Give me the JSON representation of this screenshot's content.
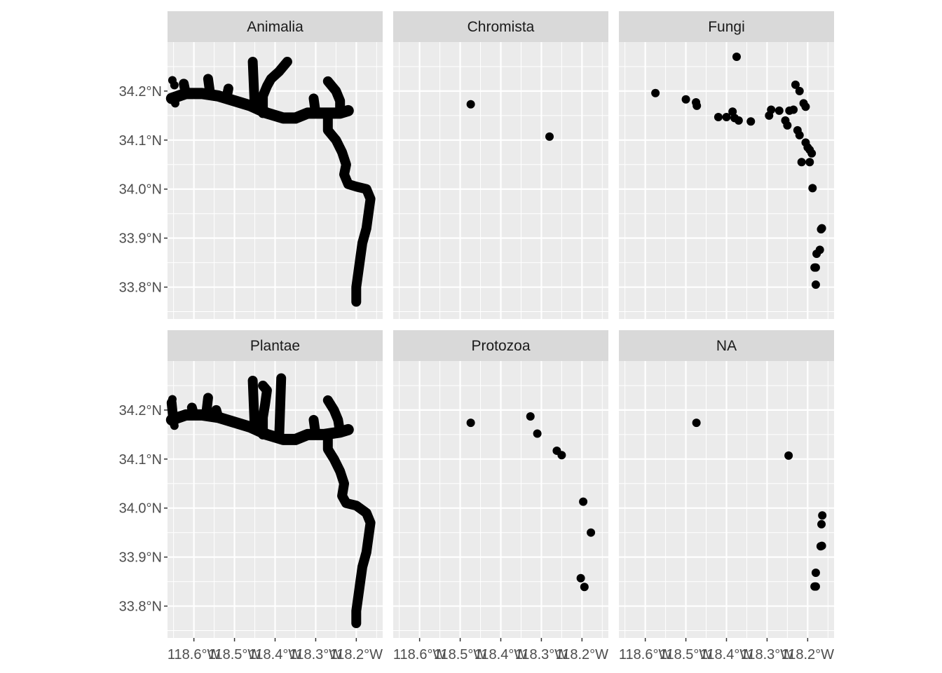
{
  "chart_data": {
    "type": "scatter",
    "layout": "facet_wrap",
    "colors": {
      "panel_bg": "#ebebeb",
      "grid": "#ffffff",
      "strip_bg": "#d9d9d9",
      "point": "#000000",
      "tick_text": "#4d4d4d",
      "strip_text": "#1a1a1a"
    },
    "xlim": [
      -118.665,
      -118.135
    ],
    "ylim": [
      33.735,
      34.3
    ],
    "x_ticks": [
      -118.6,
      -118.5,
      -118.4,
      -118.3,
      -118.2
    ],
    "x_tick_labels": [
      "118.6°W",
      "118.5°W",
      "118.4°W",
      "118.3°W",
      "118.2°W"
    ],
    "y_ticks": [
      33.8,
      33.9,
      34.0,
      34.1,
      34.2
    ],
    "y_tick_labels": [
      "33.8°N",
      "33.9°N",
      "34.0°N",
      "34.1°N",
      "34.2°N"
    ],
    "panels": [
      {
        "label": "Animalia",
        "dense_path": [
          [
            -118.655,
            34.185
          ],
          [
            -118.62,
            34.195
          ],
          [
            -118.58,
            34.195
          ],
          [
            -118.54,
            34.19
          ],
          [
            -118.5,
            34.18
          ],
          [
            -118.46,
            34.17
          ],
          [
            -118.42,
            34.155
          ],
          [
            -118.38,
            34.145
          ],
          [
            -118.35,
            34.145
          ],
          [
            -118.32,
            34.155
          ],
          [
            -118.28,
            34.155
          ],
          [
            -118.24,
            34.155
          ],
          [
            -118.22,
            34.16
          ]
        ],
        "branches": [
          [
            [
              -118.62,
              34.195
            ],
            [
              -118.625,
              34.215
            ]
          ],
          [
            [
              -118.56,
              34.195
            ],
            [
              -118.565,
              34.225
            ]
          ],
          [
            [
              -118.52,
              34.185
            ],
            [
              -118.515,
              34.205
            ]
          ],
          [
            [
              -118.43,
              34.155
            ],
            [
              -118.43,
              34.19
            ],
            [
              -118.42,
              34.21
            ],
            [
              -118.41,
              34.225
            ],
            [
              -118.39,
              34.24
            ],
            [
              -118.37,
              34.26
            ]
          ],
          [
            [
              -118.45,
              34.165
            ],
            [
              -118.455,
              34.26
            ]
          ],
          [
            [
              -118.3,
              34.155
            ],
            [
              -118.305,
              34.185
            ]
          ],
          [
            [
              -118.24,
              34.16
            ],
            [
              -118.24,
              34.18
            ],
            [
              -118.25,
              34.2
            ],
            [
              -118.27,
              34.22
            ]
          ],
          [
            [
              -118.27,
              34.155
            ],
            [
              -118.27,
              34.12
            ],
            [
              -118.25,
              34.1
            ],
            [
              -118.235,
              34.075
            ],
            [
              -118.225,
              34.05
            ],
            [
              -118.23,
              34.03
            ],
            [
              -118.22,
              34.01
            ],
            [
              -118.2,
              34.005
            ],
            [
              -118.175,
              34.0
            ],
            [
              -118.165,
              33.98
            ],
            [
              -118.17,
              33.95
            ],
            [
              -118.175,
              33.92
            ],
            [
              -118.185,
              33.89
            ],
            [
              -118.19,
              33.86
            ],
            [
              -118.195,
              33.83
            ],
            [
              -118.2,
              33.8
            ],
            [
              -118.2,
              33.77
            ]
          ]
        ],
        "points": [
          [
            -118.653,
            34.222
          ],
          [
            -118.648,
            34.212
          ],
          [
            -118.646,
            34.175
          ]
        ]
      },
      {
        "label": "Chromista",
        "dense_path": [],
        "branches": [],
        "points": [
          [
            -118.474,
            34.173
          ],
          [
            -118.28,
            34.107
          ]
        ]
      },
      {
        "label": "Fungi",
        "dense_path": [],
        "branches": [],
        "points": [
          [
            -118.375,
            34.27
          ],
          [
            -118.575,
            34.196
          ],
          [
            -118.5,
            34.183
          ],
          [
            -118.475,
            34.177
          ],
          [
            -118.473,
            34.17
          ],
          [
            -118.42,
            34.147
          ],
          [
            -118.4,
            34.147
          ],
          [
            -118.385,
            34.158
          ],
          [
            -118.38,
            34.145
          ],
          [
            -118.37,
            34.14
          ],
          [
            -118.34,
            34.138
          ],
          [
            -118.29,
            34.162
          ],
          [
            -118.295,
            34.15
          ],
          [
            -118.27,
            34.16
          ],
          [
            -118.255,
            34.14
          ],
          [
            -118.25,
            34.13
          ],
          [
            -118.245,
            34.16
          ],
          [
            -118.235,
            34.162
          ],
          [
            -118.225,
            34.12
          ],
          [
            -118.22,
            34.11
          ],
          [
            -118.23,
            34.213
          ],
          [
            -118.22,
            34.2
          ],
          [
            -118.21,
            34.175
          ],
          [
            -118.205,
            34.168
          ],
          [
            -118.205,
            34.095
          ],
          [
            -118.2,
            34.085
          ],
          [
            -118.195,
            34.08
          ],
          [
            -118.19,
            34.073
          ],
          [
            -118.195,
            34.055
          ],
          [
            -118.215,
            34.055
          ],
          [
            -118.188,
            34.002
          ],
          [
            -118.165,
            33.92
          ],
          [
            -118.167,
            33.918
          ],
          [
            -118.17,
            33.876
          ],
          [
            -118.178,
            33.868
          ],
          [
            -118.18,
            33.84
          ],
          [
            -118.183,
            33.84
          ],
          [
            -118.18,
            33.805
          ]
        ]
      },
      {
        "label": "Plantae",
        "dense_path": [
          [
            -118.655,
            34.18
          ],
          [
            -118.62,
            34.19
          ],
          [
            -118.58,
            34.19
          ],
          [
            -118.54,
            34.185
          ],
          [
            -118.5,
            34.175
          ],
          [
            -118.46,
            34.165
          ],
          [
            -118.42,
            34.15
          ],
          [
            -118.38,
            34.14
          ],
          [
            -118.35,
            34.14
          ],
          [
            -118.32,
            34.15
          ],
          [
            -118.28,
            34.15
          ],
          [
            -118.24,
            34.155
          ],
          [
            -118.22,
            34.16
          ]
        ],
        "branches": [
          [
            [
              -118.65,
              34.175
            ],
            [
              -118.655,
              34.215
            ]
          ],
          [
            [
              -118.6,
              34.19
            ],
            [
              -118.605,
              34.205
            ]
          ],
          [
            [
              -118.57,
              34.19
            ],
            [
              -118.565,
              34.225
            ]
          ],
          [
            [
              -118.54,
              34.185
            ],
            [
              -118.545,
              34.2
            ]
          ],
          [
            [
              -118.43,
              34.15
            ],
            [
              -118.43,
              34.185
            ],
            [
              -118.425,
              34.21
            ],
            [
              -118.42,
              34.24
            ],
            [
              -118.43,
              34.25
            ]
          ],
          [
            [
              -118.45,
              34.16
            ],
            [
              -118.455,
              34.26
            ]
          ],
          [
            [
              -118.39,
              34.145
            ],
            [
              -118.385,
              34.265
            ]
          ],
          [
            [
              -118.3,
              34.15
            ],
            [
              -118.305,
              34.18
            ]
          ],
          [
            [
              -118.24,
              34.155
            ],
            [
              -118.245,
              34.18
            ],
            [
              -118.255,
              34.2
            ],
            [
              -118.27,
              34.22
            ]
          ],
          [
            [
              -118.27,
              34.15
            ],
            [
              -118.27,
              34.12
            ],
            [
              -118.255,
              34.1
            ],
            [
              -118.24,
              34.075
            ],
            [
              -118.23,
              34.05
            ],
            [
              -118.235,
              34.025
            ],
            [
              -118.225,
              34.01
            ],
            [
              -118.2,
              34.005
            ],
            [
              -118.175,
              33.99
            ],
            [
              -118.165,
              33.97
            ],
            [
              -118.17,
              33.94
            ],
            [
              -118.175,
              33.91
            ],
            [
              -118.185,
              33.88
            ],
            [
              -118.19,
              33.85
            ],
            [
              -118.195,
              33.82
            ],
            [
              -118.2,
              33.79
            ],
            [
              -118.2,
              33.765
            ]
          ]
        ],
        "points": [
          [
            -118.653,
            34.222
          ],
          [
            -118.648,
            34.168
          ]
        ]
      },
      {
        "label": "Protozoa",
        "dense_path": [],
        "branches": [],
        "points": [
          [
            -118.474,
            34.174
          ],
          [
            -118.327,
            34.187
          ],
          [
            -118.31,
            34.152
          ],
          [
            -118.262,
            34.117
          ],
          [
            -118.25,
            34.108
          ],
          [
            -118.197,
            34.013
          ],
          [
            -118.178,
            33.95
          ],
          [
            -118.203,
            33.857
          ],
          [
            -118.194,
            33.839
          ]
        ]
      },
      {
        "label": "NA",
        "dense_path": [],
        "branches": [],
        "points": [
          [
            -118.474,
            34.174
          ],
          [
            -118.247,
            34.107
          ],
          [
            -118.164,
            33.985
          ],
          [
            -118.166,
            33.967
          ],
          [
            -118.165,
            33.923
          ],
          [
            -118.168,
            33.922
          ],
          [
            -118.18,
            33.868
          ],
          [
            -118.18,
            33.84
          ],
          [
            -118.183,
            33.84
          ]
        ]
      }
    ]
  }
}
